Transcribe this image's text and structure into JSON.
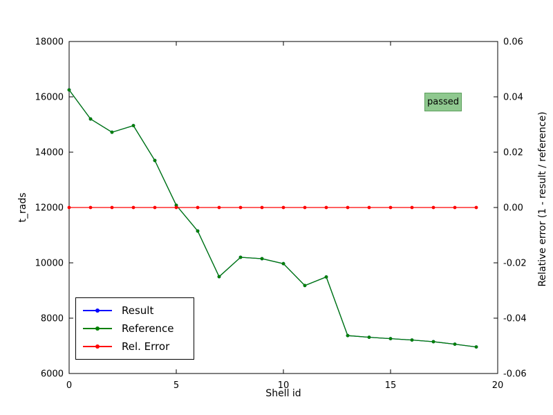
{
  "chart_data": {
    "type": "line",
    "title": "",
    "xlabel": "Shell id",
    "ylabel_left": "t_rads",
    "ylabel_right": "Relative error (1 - result / reference)",
    "xlim": [
      0,
      20
    ],
    "ylim_left": [
      6000,
      18000
    ],
    "ylim_right": [
      -0.06,
      0.06
    ],
    "x_ticks": [
      0,
      5,
      10,
      15,
      20
    ],
    "y_ticks_left": [
      6000,
      8000,
      10000,
      12000,
      14000,
      16000,
      18000
    ],
    "y_ticks_right": [
      -0.06,
      -0.04,
      -0.02,
      0,
      0.02,
      0.04,
      0.06
    ],
    "grid": false,
    "legend_position": "lower left",
    "x": [
      0,
      1,
      2,
      3,
      4,
      5,
      6,
      7,
      8,
      9,
      10,
      11,
      12,
      13,
      14,
      15,
      16,
      17,
      18,
      19
    ],
    "series": [
      {
        "name": "Result",
        "color": "#0000ff",
        "axis": "left",
        "values": [
          16250,
          15200,
          14720,
          14960,
          13700,
          12080,
          11150,
          9500,
          10200,
          10150,
          9970,
          9180,
          9490,
          7370,
          7310,
          7260,
          7210,
          7150,
          7060,
          6960
        ]
      },
      {
        "name": "Reference",
        "color": "#008000",
        "axis": "left",
        "values": [
          16250,
          15200,
          14720,
          14960,
          13700,
          12080,
          11150,
          9500,
          10200,
          10150,
          9970,
          9180,
          9490,
          7370,
          7310,
          7260,
          7210,
          7150,
          7060,
          6960
        ]
      },
      {
        "name": "Rel. Error",
        "color": "#ff0000",
        "axis": "right",
        "values": [
          0,
          0,
          0,
          0,
          0,
          0,
          0,
          0,
          0,
          0,
          0,
          0,
          0,
          0,
          0,
          0,
          0,
          0,
          0,
          0
        ]
      }
    ],
    "annotation": {
      "text": "passed",
      "bg_color": "#8fc88f",
      "border_color": "#5a9e5a",
      "text_color": "#000000"
    }
  }
}
